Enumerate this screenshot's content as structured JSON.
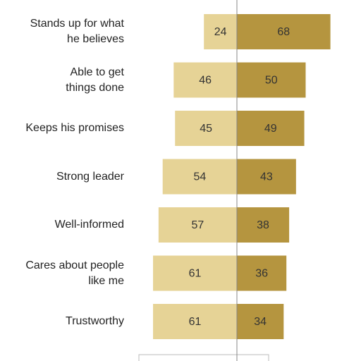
{
  "chart_data": {
    "type": "diverging-bar",
    "categories": [
      "Stands up for what\nhe believes",
      "Able to get\nthings done",
      "Keeps his promises",
      "Strong leader",
      "Well-informed",
      "Cares about people\nlike me",
      "Trustworthy"
    ],
    "series": [
      {
        "color": "#e6d396",
        "values": [
          24,
          46,
          45,
          54,
          57,
          61,
          61
        ]
      },
      {
        "color": "#b5953f",
        "values": [
          68,
          50,
          49,
          43,
          38,
          36,
          34
        ]
      }
    ]
  }
}
